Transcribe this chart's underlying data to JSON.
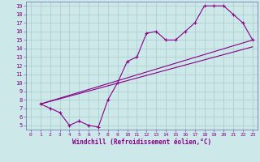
{
  "xlabel": "Windchill (Refroidissement éolien,°C)",
  "xlim": [
    -0.5,
    23.5
  ],
  "ylim": [
    4.5,
    19.5
  ],
  "xticks": [
    0,
    1,
    2,
    3,
    4,
    5,
    6,
    7,
    8,
    9,
    10,
    11,
    12,
    13,
    14,
    15,
    16,
    17,
    18,
    19,
    20,
    21,
    22,
    23
  ],
  "yticks": [
    5,
    6,
    7,
    8,
    9,
    10,
    11,
    12,
    13,
    14,
    15,
    16,
    17,
    18,
    19
  ],
  "line_color": "#880088",
  "bg_color": "#cce8e8",
  "grid_color": "#aacccc",
  "axis_color": "#6666aa",
  "line1_x": [
    1,
    2,
    3,
    4,
    5,
    6,
    7,
    8,
    9,
    10,
    11,
    12,
    13,
    14,
    15,
    16,
    17,
    18,
    19,
    20,
    21,
    22,
    23
  ],
  "line1_y": [
    7.5,
    7,
    6.5,
    5,
    5.5,
    5,
    4.8,
    8.0,
    10,
    12.5,
    13,
    15.8,
    16,
    15,
    15,
    16,
    17,
    19,
    19,
    19,
    18,
    17,
    15
  ],
  "line2_x": [
    1,
    23
  ],
  "line2_y": [
    7.5,
    15
  ],
  "line3_x": [
    1,
    23
  ],
  "line3_y": [
    7.5,
    14.2
  ]
}
